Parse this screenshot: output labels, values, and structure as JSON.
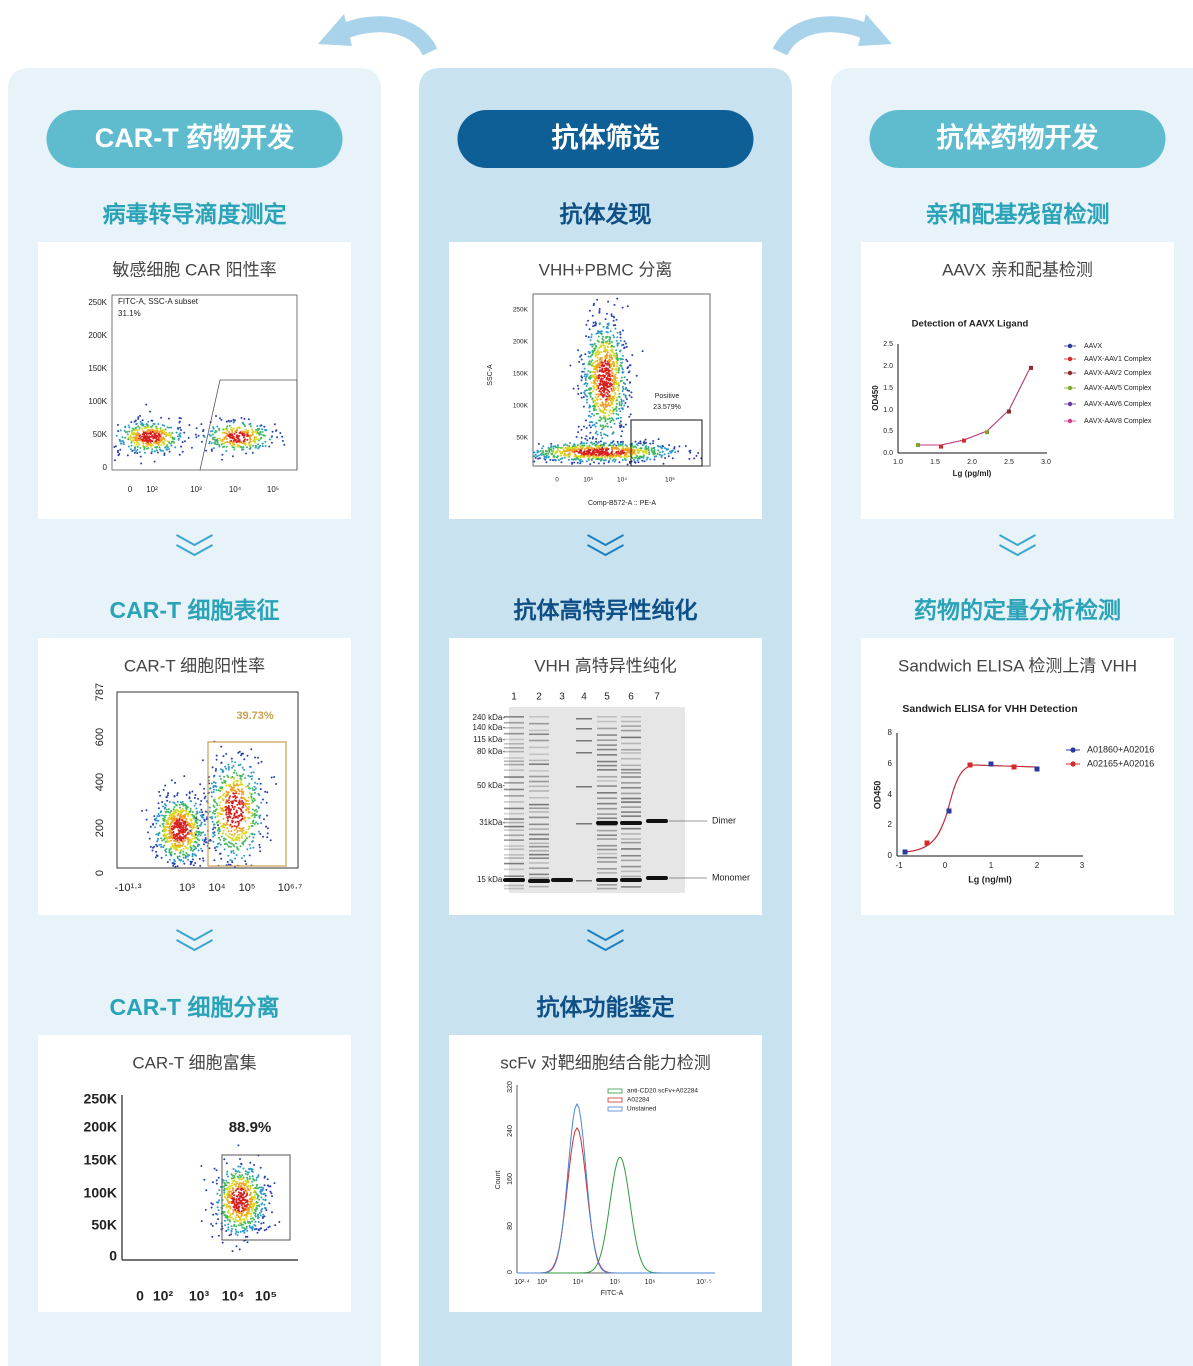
{
  "columns": [
    {
      "title": "CAR-T 药物开发",
      "sections": [
        {
          "title": "病毒转导滴度测定",
          "caption": "敏感细胞 CAR 阳性率",
          "plot": {
            "gate": "FITC-A, SSC-A subset",
            "percent": "31.1%",
            "yticks": [
              "250K",
              "200K",
              "150K",
              "100K",
              "50K",
              "0"
            ],
            "xticks": [
              "0",
              "10²",
              "10³",
              "10⁴",
              "10⁵"
            ]
          }
        },
        {
          "title": "CAR-T 细胞表征",
          "caption": "CAR-T 细胞阳性率",
          "plot": {
            "percent": "39.73%",
            "yticks": [
              "787",
              "600",
              "400",
              "200",
              "0"
            ],
            "xticks": [
              "-10¹·³",
              "10³",
              "10⁴",
              "10⁵",
              "10⁶·⁷"
            ]
          }
        },
        {
          "title": "CAR-T 细胞分离",
          "caption": "CAR-T 细胞富集",
          "plot": {
            "percent": "88.9%",
            "yticks": [
              "250K",
              "200K",
              "150K",
              "100K",
              "50K",
              "0"
            ],
            "xticks": [
              "0",
              "10²",
              "10³",
              "10⁴",
              "10⁵"
            ]
          }
        }
      ]
    },
    {
      "title": "抗体筛选",
      "sections": [
        {
          "title": "抗体发现",
          "caption": "VHH+PBMC 分离",
          "plot": {
            "ylabel": "SSC-A",
            "xlabel": "Comp-B572-A :: PE-A",
            "gate": "Positive",
            "percent": "23.579%",
            "yticks": [
              "250K",
              "200K",
              "150K",
              "100K",
              "50K"
            ],
            "xticks": [
              "0",
              "10³",
              "10⁴",
              "10⁶"
            ]
          }
        },
        {
          "title": "抗体高特异性纯化",
          "caption": "VHH 高特异性纯化",
          "plot": {
            "lanes": [
              "1",
              "2",
              "3",
              "4",
              "5",
              "6",
              "7"
            ],
            "markers": [
              "240 kDa-",
              "140 kDa-",
              "115 kDa-",
              "80 kDa-",
              "50 kDa-",
              "31kDa-",
              "15 kDa-"
            ],
            "bands": [
              "Dimer",
              "Monomer"
            ]
          }
        },
        {
          "title": "抗体功能鉴定",
          "caption": "scFv 对靶细胞结合能力检测",
          "plot": {
            "legend": [
              {
                "name": "anti-CD20 scFv+A02284",
                "color": "#2e9a3e"
              },
              {
                "name": "A02284",
                "color": "#d03030"
              },
              {
                "name": "Unstained",
                "color": "#4a86d8"
              }
            ],
            "ylabel": "Count",
            "xlabel": "FITC-A",
            "yticks": [
              "320",
              "240",
              "160",
              "80",
              "0"
            ],
            "xticks": [
              "10²·⁴",
              "10³",
              "10⁴",
              "10⁵",
              "10⁶",
              "10⁷·⁵"
            ]
          }
        }
      ]
    },
    {
      "title": "抗体药物开发",
      "sections": [
        {
          "title": "亲和配基残留检测",
          "caption": "AAVX 亲和配基检测",
          "plot": {
            "title": "Detection of AAVX Ligand",
            "ylabel": "OD450",
            "xlabel": "Lg (pg/ml)",
            "yticks": [
              "2.5",
              "2.0",
              "1.5",
              "1.0",
              "0.5",
              "0.0"
            ],
            "xticks": [
              "1.0",
              "1.5",
              "2.0",
              "2.5",
              "3.0"
            ],
            "legend": [
              {
                "name": "AAVX",
                "color": "#2a3a9c"
              },
              {
                "name": "AAVX-AAV1 Complex",
                "color": "#d42a2a"
              },
              {
                "name": "AAVX-AAV2 Complex",
                "color": "#8c2a2a"
              },
              {
                "name": "AAVX-AAV5 Complex",
                "color": "#7aa82a"
              },
              {
                "name": "AAVX-AAV6 Complex",
                "color": "#6a3aa0"
              },
              {
                "name": "AAVX-AAV8 Complex",
                "color": "#d43a8c"
              }
            ]
          }
        },
        {
          "title": "药物的定量分析检测",
          "caption": "Sandwich ELISA 检测上清 VHH",
          "plot": {
            "title": "Sandwich ELISA for VHH Detection",
            "ylabel": "OD450",
            "xlabel": "Lg (ng/ml)",
            "yticks": [
              "8",
              "6",
              "4",
              "2",
              "0"
            ],
            "xticks": [
              "-1",
              "0",
              "1",
              "2",
              "3"
            ],
            "legend": [
              {
                "name": "A01860+A02016",
                "color": "#2a3aa0"
              },
              {
                "name": "A02165+A02016",
                "color": "#d42a2a"
              }
            ]
          }
        }
      ]
    }
  ]
}
